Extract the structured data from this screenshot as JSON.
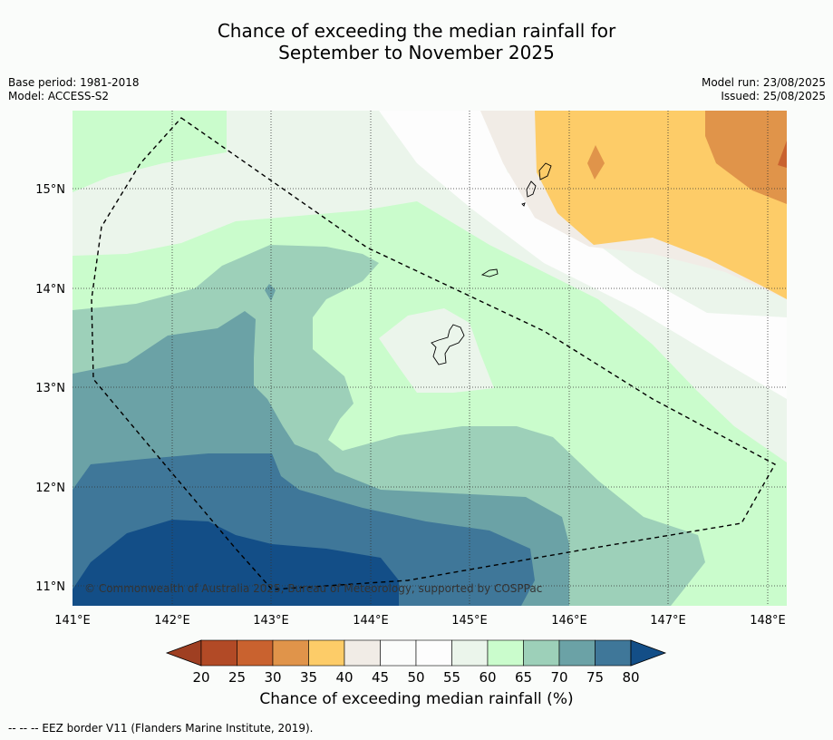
{
  "title_line1": "Chance of exceeding the median rainfall for",
  "title_line2": "September to November 2025",
  "base_period": "Base period: 1981-2018",
  "model": "Model: ACCESS-S2",
  "model_run": "Model run: 23/08/2025",
  "issued": "Issued: 25/08/2025",
  "copyright": "© Commonwealth of Australia 2025, Bureau of Meteorology, supported by COSPPac",
  "lat_labels": [
    "15°N",
    "14°N",
    "13°N",
    "12°N",
    "11°N"
  ],
  "lon_labels": [
    "141°E",
    "142°E",
    "143°E",
    "144°E",
    "145°E",
    "146°E",
    "147°E",
    "148°E"
  ],
  "colorbar": {
    "ticks": [
      "20",
      "25",
      "30",
      "35",
      "40",
      "45",
      "50",
      "55",
      "60",
      "65",
      "70",
      "75",
      "80"
    ],
    "colors": [
      "#b24a26",
      "#c9622f",
      "#e0944a",
      "#fdcc68",
      "#f1ece6",
      "#fbfcfb",
      "#fdfdfd",
      "#ebf5eb",
      "#cafccc",
      "#9dd0b9",
      "#6ba2a6",
      "#3f7799",
      "#134e87"
    ],
    "under_color": "#9f3f22",
    "label": "Chance of exceeding median rainfall (%)"
  },
  "footnote": "--  --  -- EEZ border V11 (Flanders Marine Institute, 2019)."
}
